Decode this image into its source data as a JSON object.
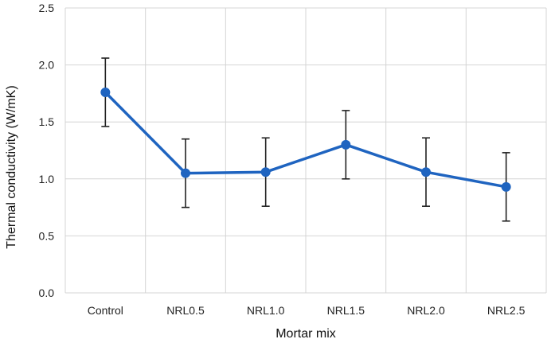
{
  "chart_data": {
    "type": "line",
    "title": "",
    "xlabel": "Mortar mix",
    "ylabel": "Thermal conductivity (W/mK)",
    "categories": [
      "Control",
      "NRL0.5",
      "NRL1.0",
      "NRL1.5",
      "NRL2.0",
      "NRL2.5"
    ],
    "series": [
      {
        "values": [
          1.76,
          1.05,
          1.06,
          1.3,
          1.06,
          0.93
        ],
        "error_low": [
          1.46,
          0.75,
          0.76,
          1.0,
          0.76,
          0.63
        ],
        "error_high": [
          2.06,
          1.35,
          1.36,
          1.6,
          1.36,
          1.23
        ],
        "color": "#1f64c0"
      }
    ],
    "ylim": [
      0.0,
      2.5
    ],
    "yticks": [
      "0.0",
      "0.5",
      "1.0",
      "1.5",
      "2.0",
      "2.5"
    ],
    "grid": true,
    "legend": "none",
    "marker": "circle"
  }
}
